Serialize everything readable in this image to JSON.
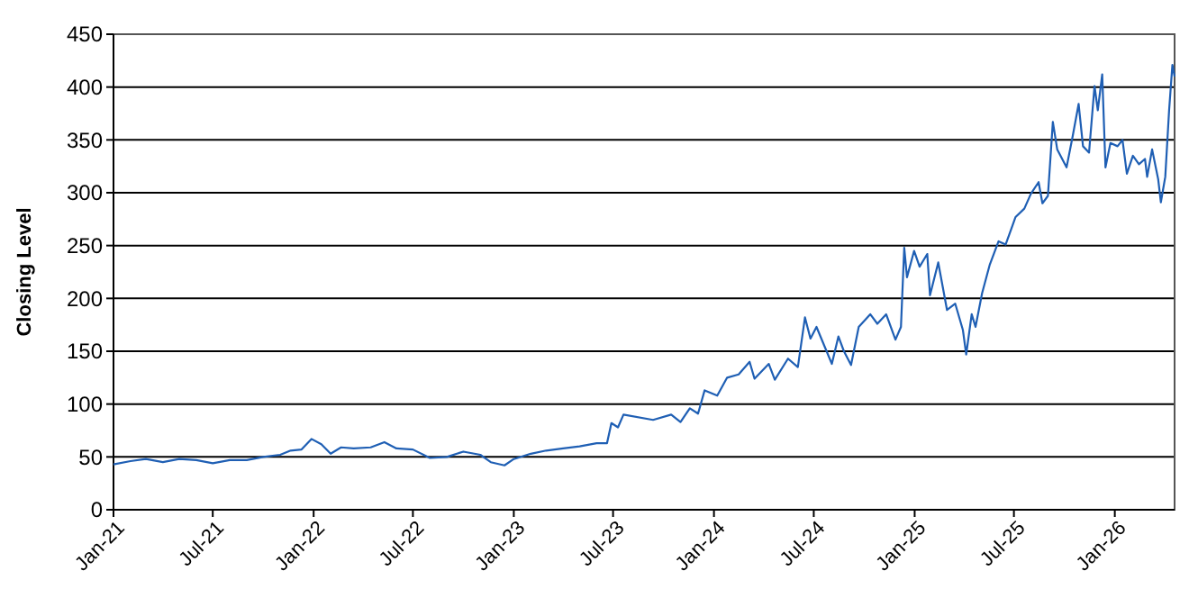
{
  "chart_data": {
    "type": "line",
    "ylabel": "Closing Level",
    "grid": "y",
    "marker": "none",
    "line_style": "solid",
    "xlim": [
      "2021-01-01",
      "2026-04-20"
    ],
    "xticks": [
      {
        "value": "2021-01-01",
        "label": "Jan-21"
      },
      {
        "value": "2021-07-01",
        "label": "Jul-21"
      },
      {
        "value": "2022-01-01",
        "label": "Jan-22"
      },
      {
        "value": "2022-07-01",
        "label": "Jul-22"
      },
      {
        "value": "2023-01-01",
        "label": "Jan-23"
      },
      {
        "value": "2023-07-01",
        "label": "Jul-23"
      },
      {
        "value": "2024-01-01",
        "label": "Jan-24"
      },
      {
        "value": "2024-07-01",
        "label": "Jul-24"
      },
      {
        "value": "2025-01-01",
        "label": "Jan-25"
      },
      {
        "value": "2025-07-01",
        "label": "Jul-25"
      },
      {
        "value": "2026-01-01",
        "label": "Jan-26"
      }
    ],
    "ylim": [
      0,
      450
    ],
    "yticks": [
      0,
      50,
      100,
      150,
      200,
      250,
      300,
      350,
      400,
      450
    ],
    "x": [
      "2021-01-01",
      "2021-02-01",
      "2021-03-01",
      "2021-04-01",
      "2021-05-01",
      "2021-06-01",
      "2021-07-01",
      "2021-08-01",
      "2021-09-01",
      "2021-10-01",
      "2021-11-01",
      "2021-11-20",
      "2021-12-10",
      "2021-12-28",
      "2022-01-15",
      "2022-02-01",
      "2022-02-20",
      "2022-03-15",
      "2022-04-15",
      "2022-05-10",
      "2022-06-01",
      "2022-07-01",
      "2022-08-01",
      "2022-09-01",
      "2022-10-01",
      "2022-11-01",
      "2022-11-20",
      "2022-12-15",
      "2023-01-01",
      "2023-02-01",
      "2023-03-01",
      "2023-04-01",
      "2023-05-01",
      "2023-06-01",
      "2023-06-20",
      "2023-06-28",
      "2023-07-10",
      "2023-07-20",
      "2023-09-12",
      "2023-10-15",
      "2023-11-01",
      "2023-11-18",
      "2023-12-03",
      "2023-12-15",
      "2024-01-07",
      "2024-01-25",
      "2024-02-15",
      "2024-03-06",
      "2024-03-15",
      "2024-04-10",
      "2024-04-21",
      "2024-05-15",
      "2024-06-02",
      "2024-06-15",
      "2024-06-25",
      "2024-07-06",
      "2024-07-22",
      "2024-08-03",
      "2024-08-15",
      "2024-08-25",
      "2024-09-07",
      "2024-09-21",
      "2024-10-12",
      "2024-10-25",
      "2024-11-10",
      "2024-11-27",
      "2024-12-07",
      "2024-12-13",
      "2024-12-18",
      "2024-12-31",
      "2025-01-10",
      "2025-01-24",
      "2025-01-29",
      "2025-02-13",
      "2025-03-01",
      "2025-03-16",
      "2025-03-30",
      "2025-04-05",
      "2025-04-15",
      "2025-04-22",
      "2025-05-04",
      "2025-05-18",
      "2025-06-03",
      "2025-06-16",
      "2025-07-04",
      "2025-07-20",
      "2025-08-01",
      "2025-08-15",
      "2025-08-22",
      "2025-09-01",
      "2025-09-10",
      "2025-09-18",
      "2025-10-05",
      "2025-10-16",
      "2025-10-27",
      "2025-11-04",
      "2025-11-15",
      "2025-11-25",
      "2025-12-01",
      "2025-12-09",
      "2025-12-15",
      "2025-12-24",
      "2026-01-06",
      "2026-01-15",
      "2026-01-23",
      "2026-02-03",
      "2026-02-14",
      "2026-02-25",
      "2026-03-01",
      "2026-03-10",
      "2026-03-21",
      "2026-03-26",
      "2026-04-03",
      "2026-04-10",
      "2026-04-16",
      "2026-04-20"
    ],
    "series": [
      {
        "color": "#1f5fb4",
        "values": [
          43,
          46,
          48,
          45,
          48,
          47,
          44,
          47,
          47,
          50,
          52,
          56,
          57,
          67,
          62,
          53,
          59,
          58,
          59,
          64,
          58,
          57,
          49,
          50,
          55,
          52,
          45,
          42,
          48,
          53,
          56,
          58,
          60,
          63,
          63,
          82,
          78,
          90,
          85,
          90,
          83,
          96,
          91,
          113,
          108,
          125,
          128,
          140,
          124,
          138,
          123,
          143,
          135,
          182,
          162,
          173,
          153,
          138,
          164,
          150,
          137,
          173,
          185,
          176,
          185,
          161,
          173,
          248,
          220,
          245,
          230,
          242,
          203,
          234,
          189,
          195,
          170,
          147,
          185,
          173,
          205,
          232,
          254,
          251,
          277,
          285,
          299,
          310,
          290,
          297,
          367,
          341,
          324,
          353,
          384,
          344,
          338,
          401,
          378,
          412,
          324,
          347,
          344,
          350,
          318,
          335,
          327,
          332,
          315,
          341,
          313,
          291,
          315,
          378,
          421,
          410
        ]
      }
    ]
  }
}
